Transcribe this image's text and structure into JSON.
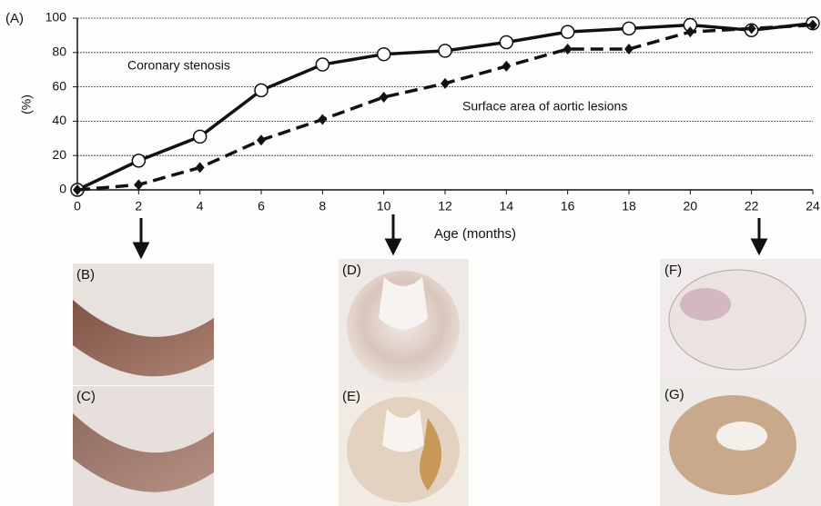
{
  "chart_data": {
    "type": "line",
    "panel_label": "(A)",
    "ylabel": "(%)",
    "xlabel": "Age (months)",
    "x": [
      0,
      2,
      4,
      6,
      8,
      10,
      12,
      14,
      16,
      18,
      20,
      22,
      24
    ],
    "series": [
      {
        "name": "Coronary stenosis",
        "color": "#111111",
        "style": "solid",
        "marker": "circle",
        "values": [
          0,
          17,
          31,
          58,
          73,
          79,
          81,
          86,
          92,
          94,
          96,
          93,
          97
        ]
      },
      {
        "name": "Surface area of aortic lesions",
        "color": "#111111",
        "style": "dashed",
        "marker": "diamond",
        "values": [
          0,
          3,
          13,
          29,
          41,
          54,
          62,
          72,
          82,
          82,
          92,
          94,
          96
        ]
      }
    ],
    "xlim": [
      0,
      24
    ],
    "xticks": [
      0,
      2,
      4,
      6,
      8,
      10,
      12,
      14,
      16,
      18,
      20,
      22,
      24
    ],
    "ylim": [
      0,
      100
    ],
    "yticks": [
      0,
      20,
      40,
      60,
      80,
      100
    ],
    "grid": true
  },
  "panels": [
    "(B)",
    "(C)",
    "(D)",
    "(E)",
    "(F)",
    "(G)"
  ]
}
